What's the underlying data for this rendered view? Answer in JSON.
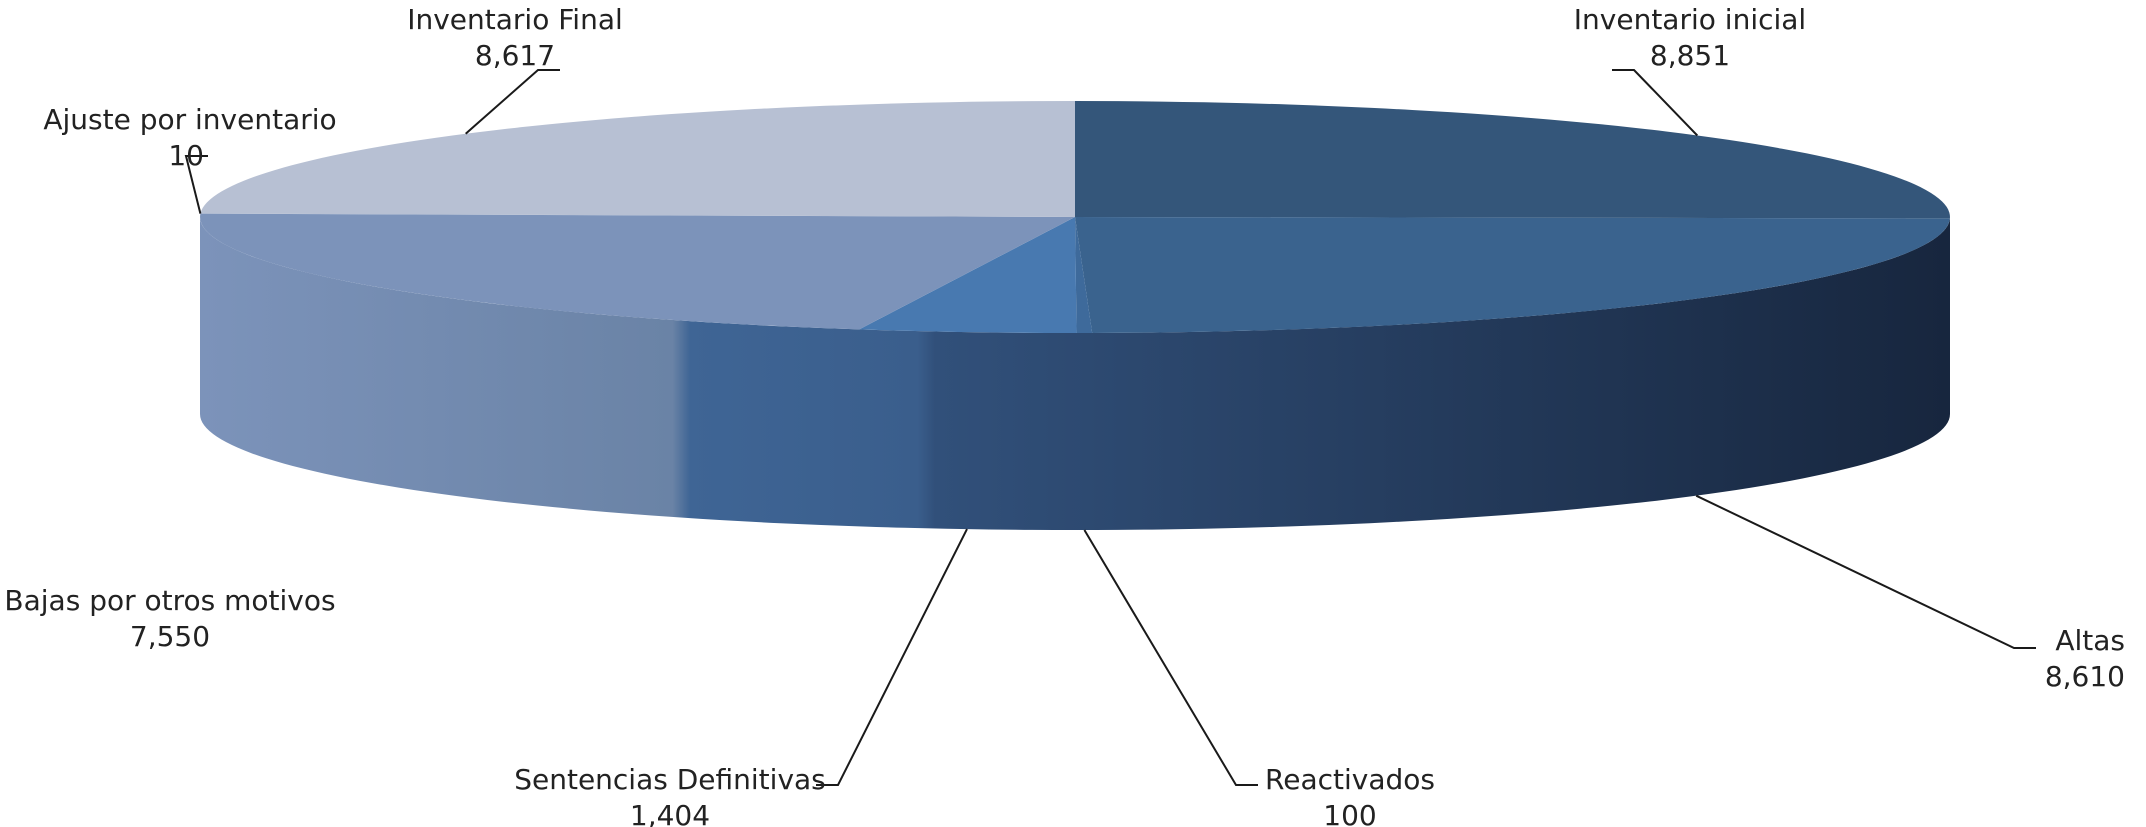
{
  "chart_data": {
    "type": "pie",
    "slices": [
      {
        "label": "Inventario inicial",
        "value": 8851,
        "value_label": "8,851",
        "color": "#34567A"
      },
      {
        "label": "Altas",
        "value": 8610,
        "value_label": "8,610",
        "color": "#3A638E"
      },
      {
        "label": "Reactivados",
        "value": 100,
        "value_label": "100",
        "color": "#3E6A9B"
      },
      {
        "label": "Sentencias Definitivas",
        "value": 1404,
        "value_label": "1,404",
        "color": "#4879B0"
      },
      {
        "label": "Bajas por otros motivos",
        "value": 7550,
        "value_label": "7,550",
        "color": "#7C93BA"
      },
      {
        "label": "Ajuste por inventario",
        "value": 10,
        "value_label": "10",
        "color": "#7C93BA"
      },
      {
        "label": "Inventario Final",
        "value": 8617,
        "value_label": "8,617",
        "color": "#B7C0D3"
      }
    ],
    "title": "",
    "legend": "none",
    "style": "3d-pie"
  }
}
